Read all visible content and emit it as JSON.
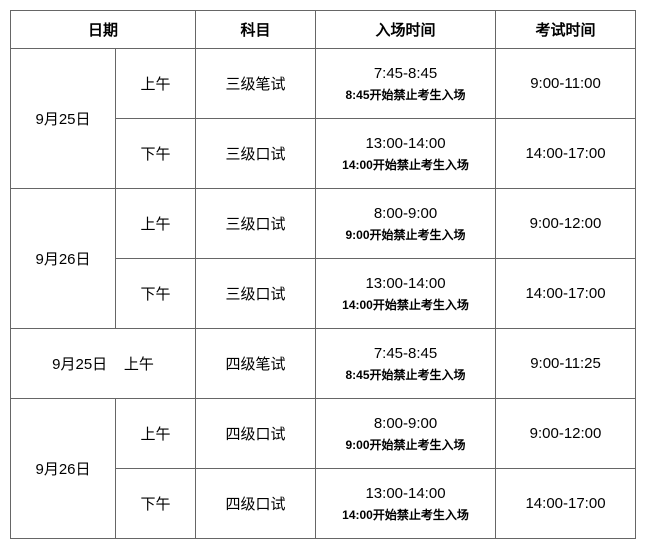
{
  "headers": {
    "date": "日期",
    "subject": "科目",
    "entry_time": "入场时间",
    "exam_time": "考试时间"
  },
  "rows": [
    {
      "date": "9月25日",
      "period": "上午",
      "subject": "三级笔试",
      "entry_time": "7:45-8:45",
      "entry_note": "8:45开始禁止考生入场",
      "exam_time": "9:00-11:00",
      "rowspan_date": 2
    },
    {
      "period": "下午",
      "subject": "三级口试",
      "entry_time": "13:00-14:00",
      "entry_note": "14:00开始禁止考生入场",
      "exam_time": "14:00-17:00"
    },
    {
      "date": "9月26日",
      "period": "上午",
      "subject": "三级口试",
      "entry_time": "8:00-9:00",
      "entry_note": "9:00开始禁止考生入场",
      "exam_time": "9:00-12:00",
      "rowspan_date": 2
    },
    {
      "period": "下午",
      "subject": "三级口试",
      "entry_time": "13:00-14:00",
      "entry_note": "14:00开始禁止考生入场",
      "exam_time": "14:00-17:00"
    },
    {
      "date": "9月25日",
      "period": "上午",
      "subject": "四级笔试",
      "entry_time": "7:45-8:45",
      "entry_note": "8:45开始禁止考生入场",
      "exam_time": "9:00-11:25",
      "rowspan_date": 1
    },
    {
      "date": "9月26日",
      "period": "上午",
      "subject": "四级口试",
      "entry_time": "8:00-9:00",
      "entry_note": "9:00开始禁止考生入场",
      "exam_time": "9:00-12:00",
      "rowspan_date": 2
    },
    {
      "period": "下午",
      "subject": "四级口试",
      "entry_time": "13:00-14:00",
      "entry_note": "14:00开始禁止考生入场",
      "exam_time": "14:00-17:00"
    }
  ],
  "colors": {
    "border": "#666666",
    "text": "#000000",
    "background": "#ffffff"
  }
}
